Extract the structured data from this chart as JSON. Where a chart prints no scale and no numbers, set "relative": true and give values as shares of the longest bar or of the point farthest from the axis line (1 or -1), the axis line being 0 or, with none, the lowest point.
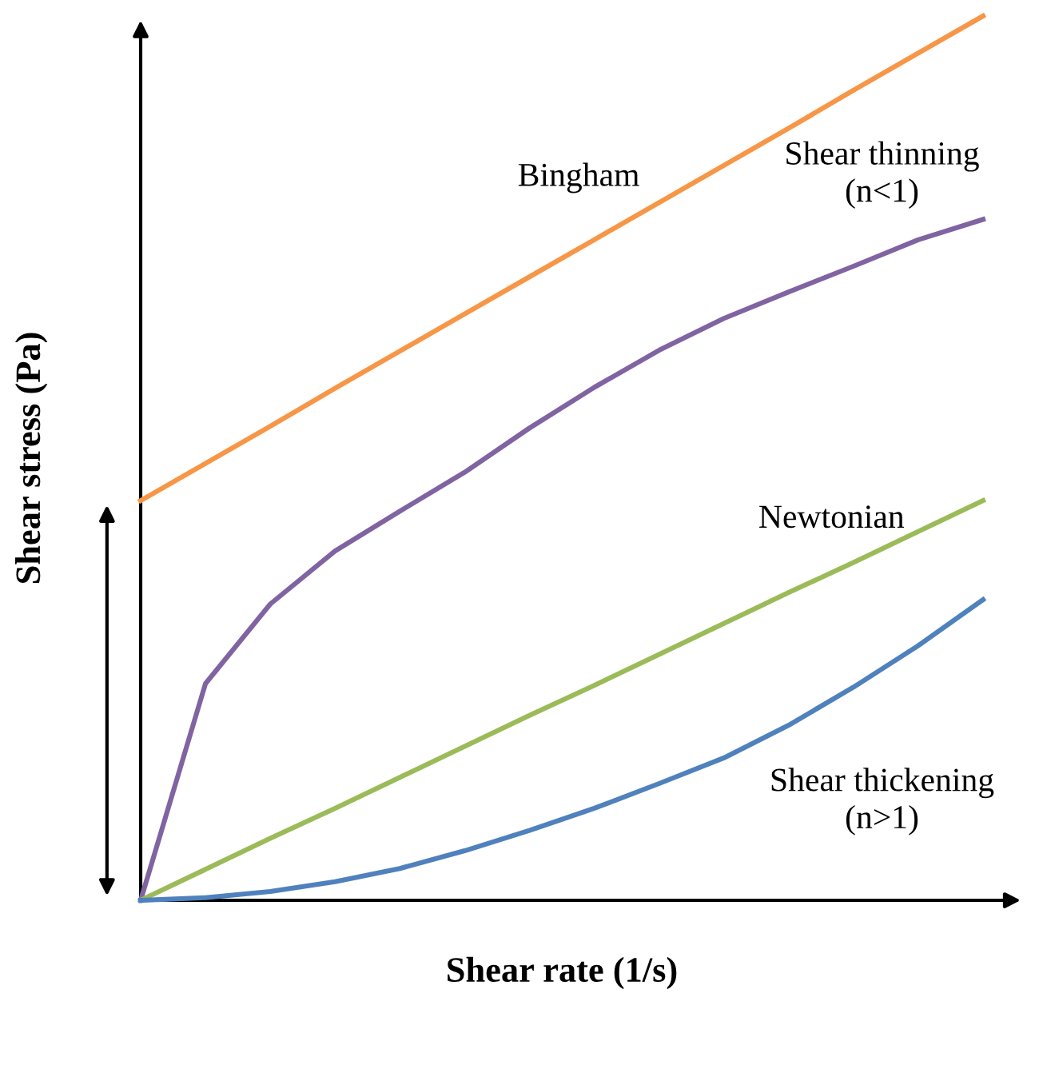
{
  "chart_data": {
    "type": "line",
    "relative": true,
    "xlabel": "Shear rate (1/s)",
    "ylabel": "Shear stress (Pa)",
    "marker": "none",
    "line_style": "solid",
    "categories": [
      null,
      null,
      null,
      null,
      null,
      null,
      null,
      null,
      null,
      null,
      null,
      null,
      null,
      null
    ],
    "series": [
      {
        "name": "Bingham",
        "color": "#f79646",
        "values": [
          0.452,
          0.494,
          0.536,
          0.579,
          0.621,
          0.663,
          0.705,
          0.747,
          0.789,
          0.831,
          0.873,
          0.916,
          0.958,
          1
        ]
      },
      {
        "name": "Shear thinning\n(n<1)",
        "color": "#8064a2",
        "values": [
          0,
          0.245,
          0.335,
          0.395,
          0.44,
          0.484,
          0.534,
          0.58,
          0.622,
          0.658,
          0.688,
          0.717,
          0.747,
          0.77
        ]
      },
      {
        "name": "Newtonian",
        "color": "#9bbb59",
        "values": [
          0,
          0.035,
          0.07,
          0.104,
          0.139,
          0.174,
          0.209,
          0.243,
          0.278,
          0.313,
          0.348,
          0.382,
          0.417,
          0.452
        ]
      },
      {
        "name": "Shear thickening\n(n>1)",
        "color": "#4f81bd",
        "values": [
          0,
          0.003,
          0.01,
          0.021,
          0.036,
          0.056,
          0.079,
          0.104,
          0.132,
          0.161,
          0.198,
          0.241,
          0.288,
          0.34
        ]
      }
    ]
  }
}
